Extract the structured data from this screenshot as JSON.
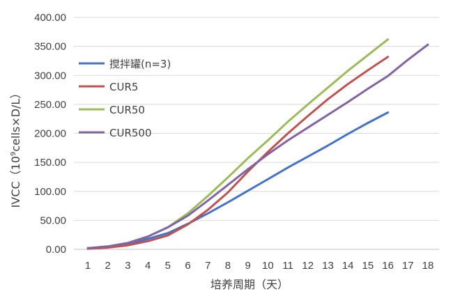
{
  "chart_data": {
    "type": "line",
    "title": "",
    "xlabel": "培养周期（天）",
    "ylabel_prefix": "IVCC（10",
    "ylabel_sup": "9",
    "ylabel_suffix": "cells×D/L）",
    "x_ticks": [
      "1",
      "2",
      "3",
      "4",
      "5",
      "6",
      "7",
      "8",
      "9",
      "10",
      "11",
      "12",
      "13",
      "14",
      "15",
      "16",
      "17",
      "18"
    ],
    "y_ticks": [
      "0.00",
      "50.00",
      "100.00",
      "150.00",
      "200.00",
      "250.00",
      "300.00",
      "350.00",
      "400.00"
    ],
    "xlim": [
      1,
      18
    ],
    "ylim": [
      0,
      400
    ],
    "grid": "horizontal",
    "legend_position": "top-left",
    "series": [
      {
        "name": "搅拌罐(n=3)",
        "color": "#4472C4",
        "x": [
          1,
          2,
          3,
          4,
          5,
          6,
          7,
          8,
          9,
          10,
          11,
          12,
          13,
          14,
          15,
          16
        ],
        "y": [
          2,
          4,
          9,
          18,
          28,
          44,
          62,
          81,
          101,
          121,
          141,
          160,
          179,
          199,
          218,
          236
        ]
      },
      {
        "name": "CUR5",
        "color": "#C0504D",
        "x": [
          1,
          2,
          3,
          4,
          5,
          6,
          7,
          8,
          9,
          10,
          11,
          12,
          13,
          14,
          15,
          16
        ],
        "y": [
          1,
          3,
          7,
          14,
          24,
          43,
          68,
          98,
          134,
          168,
          200,
          230,
          259,
          285,
          309,
          332
        ]
      },
      {
        "name": "CUR50",
        "color": "#9BBB59",
        "x": [
          1,
          2,
          3,
          4,
          5,
          6,
          7,
          8,
          9,
          10,
          11,
          12,
          13,
          14,
          15,
          16
        ],
        "y": [
          2,
          5,
          11,
          22,
          38,
          62,
          92,
          124,
          157,
          188,
          220,
          250,
          279,
          308,
          335,
          362
        ]
      },
      {
        "name": "CUR500",
        "color": "#8064A2",
        "x": [
          1,
          2,
          3,
          4,
          5,
          6,
          7,
          8,
          9,
          10,
          11,
          12,
          13,
          14,
          15,
          16,
          17,
          18
        ],
        "y": [
          2,
          5,
          11,
          22,
          38,
          58,
          84,
          111,
          138,
          164,
          188,
          210,
          232,
          254,
          277,
          299,
          327,
          353
        ]
      }
    ]
  }
}
